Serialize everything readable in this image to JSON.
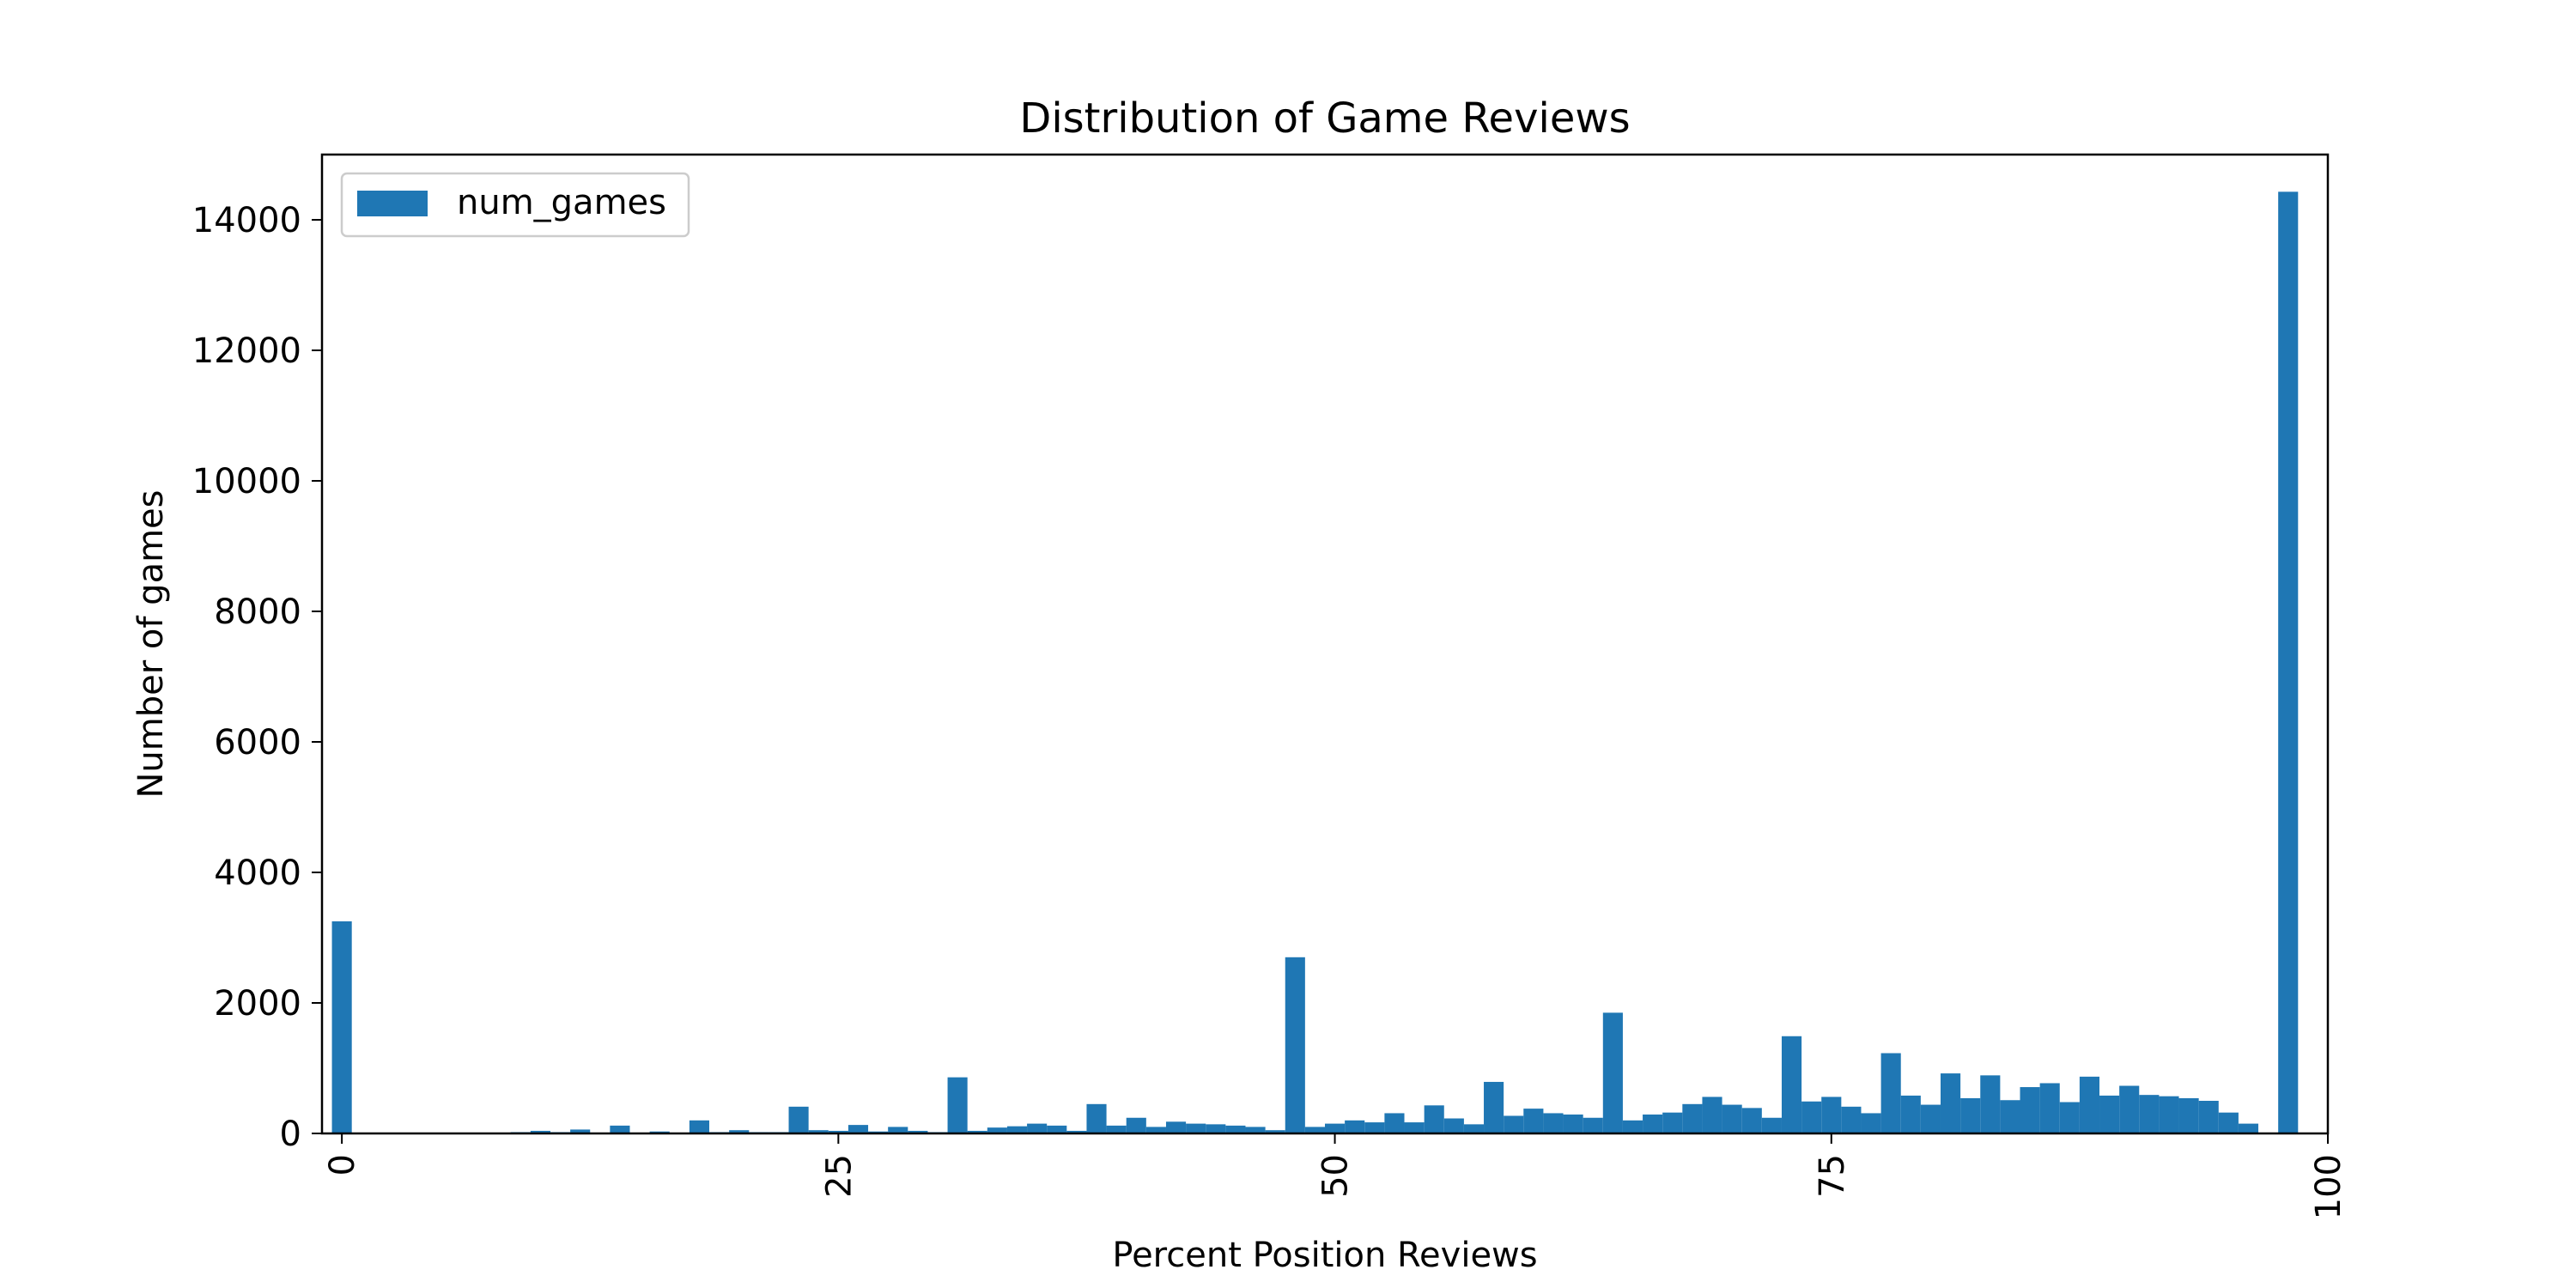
{
  "chart_data": {
    "type": "bar",
    "title": "Distribution of Game Reviews",
    "xlabel": "Percent Position Reviews",
    "ylabel": "Number of games",
    "xlim": [
      -1,
      100
    ],
    "ylim": [
      0,
      15000
    ],
    "xticks": [
      0,
      25,
      50,
      75,
      100
    ],
    "yticks": [
      0,
      2000,
      4000,
      6000,
      8000,
      10000,
      12000,
      14000
    ],
    "grid": false,
    "legend": "top-left",
    "bar_color": "#1f77b4",
    "series": [
      {
        "name": "num_games",
        "x": [
          0,
          1,
          2,
          3,
          4,
          5,
          6,
          7,
          8,
          9,
          10,
          11,
          12,
          13,
          14,
          15,
          16,
          17,
          18,
          19,
          20,
          21,
          22,
          23,
          24,
          25,
          26,
          27,
          28,
          29,
          30,
          31,
          32,
          33,
          34,
          35,
          36,
          37,
          38,
          39,
          40,
          41,
          42,
          43,
          44,
          45,
          46,
          47,
          48,
          49,
          50,
          51,
          52,
          53,
          54,
          55,
          56,
          57,
          58,
          59,
          60,
          61,
          62,
          63,
          64,
          65,
          66,
          67,
          68,
          69,
          70,
          71,
          72,
          73,
          74,
          75,
          76,
          77,
          78,
          79,
          80,
          81,
          82,
          83,
          84,
          85,
          86,
          87,
          88,
          89,
          90,
          91,
          92,
          93,
          94,
          95,
          96,
          97,
          98
        ],
        "values": [
          3250,
          0,
          0,
          0,
          0,
          0,
          0,
          10,
          10,
          20,
          40,
          20,
          60,
          10,
          120,
          10,
          30,
          10,
          200,
          20,
          50,
          20,
          20,
          410,
          50,
          40,
          130,
          30,
          100,
          40,
          20,
          860,
          40,
          90,
          110,
          150,
          120,
          40,
          450,
          120,
          240,
          100,
          180,
          150,
          140,
          120,
          100,
          50,
          2700,
          100,
          150,
          200,
          170,
          310,
          170,
          430,
          230,
          140,
          790,
          270,
          380,
          310,
          290,
          240,
          1850,
          200,
          290,
          320,
          450,
          560,
          440,
          390,
          240,
          1490,
          490,
          560,
          410,
          310,
          1230,
          580,
          440,
          920,
          540,
          890,
          510,
          710,
          770,
          480,
          870,
          580,
          730,
          590,
          570,
          540,
          500,
          320,
          150,
          10,
          14430
        ]
      }
    ]
  }
}
